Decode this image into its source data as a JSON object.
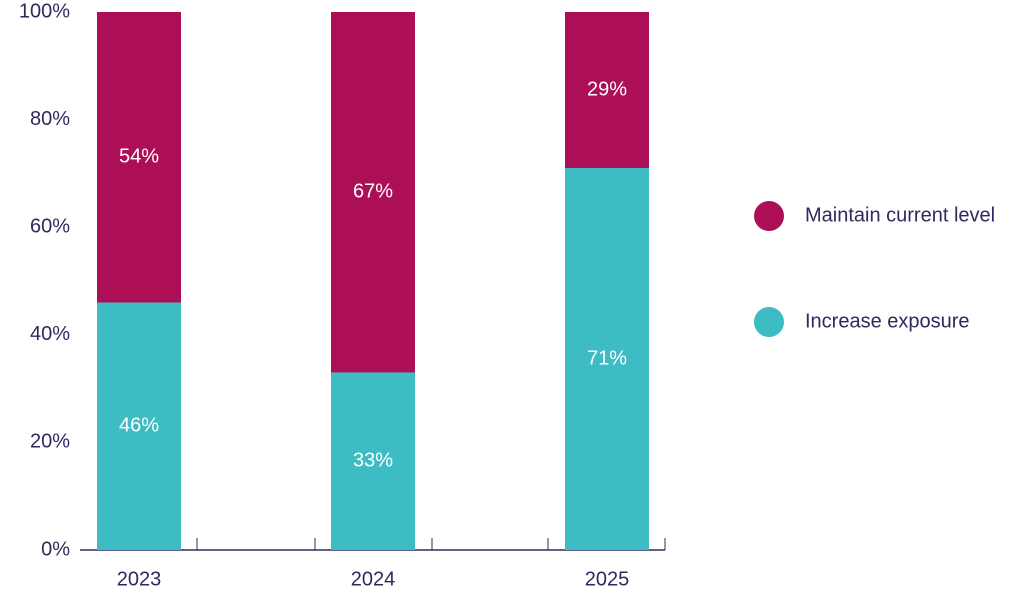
{
  "chart_data": {
    "type": "stacked_bar",
    "categories": [
      "2023",
      "2024",
      "2025"
    ],
    "series": [
      {
        "name": "Increase exposure",
        "color": "#3ebcc4",
        "values": [
          46,
          33,
          71
        ],
        "value_labels": [
          "46%",
          "33%",
          "71%"
        ]
      },
      {
        "name": "Maintain current level",
        "color": "#ad0f57",
        "values": [
          54,
          67,
          29
        ],
        "value_labels": [
          "54%",
          "67%",
          "29%"
        ]
      }
    ],
    "ylim": [
      0,
      100
    ],
    "yticks": [
      {
        "value": 0,
        "label": "0%"
      },
      {
        "value": 20,
        "label": "20%"
      },
      {
        "value": 40,
        "label": "40%"
      },
      {
        "value": 60,
        "label": "60%"
      },
      {
        "value": 80,
        "label": "80%"
      },
      {
        "value": 100,
        "label": "100%"
      }
    ],
    "grid": false
  }
}
